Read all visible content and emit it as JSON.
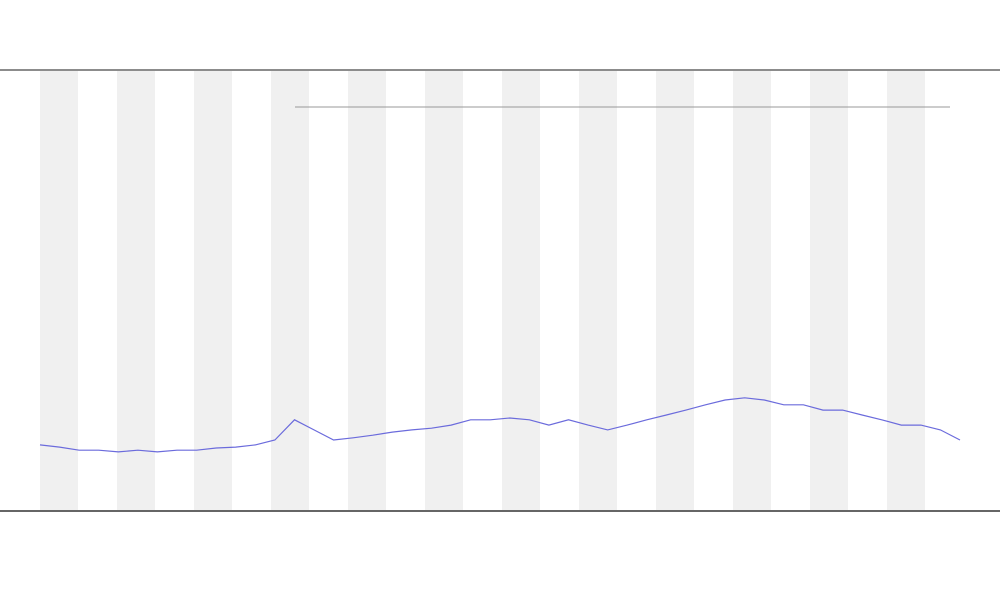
{
  "chart_data": {
    "type": "line",
    "ylim": [
      0,
      100
    ],
    "series": [
      {
        "color": "#6b6bdc",
        "values": [
          14.8,
          14.3,
          13.6,
          13.6,
          13.2,
          13.6,
          13.2,
          13.6,
          13.6,
          14.1,
          14.3,
          14.8,
          15.9,
          20.5,
          18.2,
          15.9,
          16.4,
          17.0,
          17.7,
          18.2,
          18.6,
          19.3,
          20.5,
          20.5,
          20.9,
          20.5,
          19.3,
          20.5,
          19.3,
          18.2,
          19.3,
          20.5,
          21.6,
          22.7,
          23.9,
          25.0,
          25.5,
          25.0,
          23.9,
          23.9,
          22.7,
          22.7,
          21.6,
          20.5,
          19.3,
          19.3,
          18.2,
          15.9
        ]
      }
    ]
  }
}
